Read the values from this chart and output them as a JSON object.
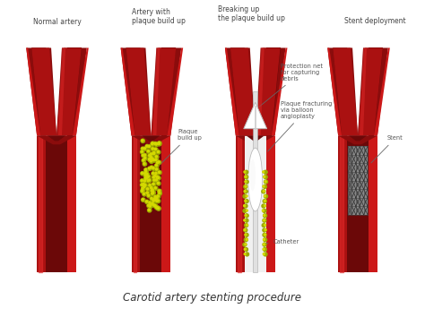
{
  "title": "Carotid artery stenting procedure",
  "title_fontsize": 8.5,
  "title_color": "#333333",
  "background_color": "#ffffff",
  "labels": {
    "panel1": "Normal artery",
    "panel2_title": "Artery with\nplaque build up",
    "panel2_annot": "Plaque\nbuild up",
    "panel3_title": "Breaking up\nthe plaque build up",
    "panel3_annot1": "Protection net\nfor capturing\ndebris",
    "panel3_annot2": "Plaque fracturing\nvia balloon\nangioplasty",
    "panel3_annot3": "Catheter",
    "panel4_title": "Stent deployment",
    "panel4_annot": "Stent"
  },
  "panel_centers": [
    62,
    168,
    285,
    400
  ],
  "outer_red": "#9b1010",
  "mid_red": "#c01515",
  "bright_red": "#cc2222",
  "highlight_red": "#dd3333",
  "dark_red": "#6b0808",
  "lumen_dark": "#7a0a0a",
  "lumen_mid": "#8b1010",
  "label_fs": 5.5,
  "annot_fs": 4.8
}
